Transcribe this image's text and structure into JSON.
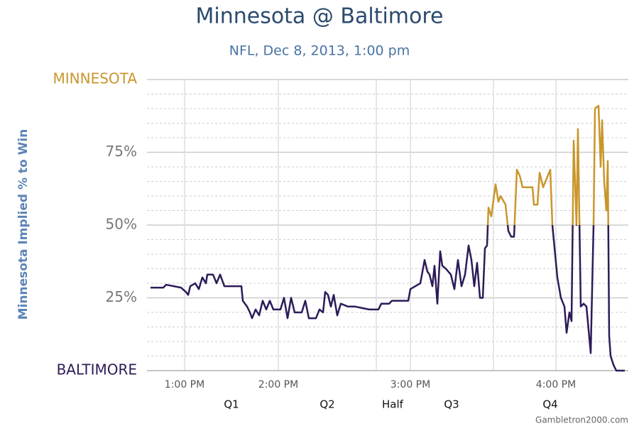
{
  "chart_data": {
    "type": "line",
    "title": "Minnesota @ Baltimore",
    "subtitle": "NFL, Dec 8, 2013, 1:00 pm",
    "y_label": "Minnesota Implied % to Win",
    "source": "Gambletron2000.com",
    "xlim": [
      0,
      678
    ],
    "ylim": [
      0,
      100
    ],
    "xticks": [
      {
        "value": 53,
        "label": "1:00 PM"
      },
      {
        "value": 185,
        "label": "2:00 PM"
      },
      {
        "value": 371,
        "label": "3:00 PM"
      },
      {
        "value": 576,
        "label": "4:00 PM"
      }
    ],
    "yticks": [
      {
        "value": 0,
        "label": "BALTIMORE"
      },
      {
        "value": 25,
        "label": "25%"
      },
      {
        "value": 50,
        "label": "50%"
      },
      {
        "value": 75,
        "label": "75%"
      },
      {
        "value": 100,
        "label": "MINNESOTA"
      }
    ],
    "minor_ystep": 5,
    "periods": [
      {
        "label": "Q1",
        "x": 119
      },
      {
        "label": "Q2",
        "x": 254
      },
      {
        "label": "Half",
        "x": 346
      },
      {
        "label": "Q3",
        "x": 429
      },
      {
        "label": "Q4",
        "x": 568
      }
    ],
    "period_boundaries": [
      323,
      488
    ],
    "grid": true,
    "series": [
      {
        "color": "#2d1b58",
        "above_color": "#c9962c",
        "color_split": 50,
        "x": [
          5,
          23,
          27,
          38,
          48,
          55,
          58,
          61,
          68,
          73,
          78,
          83,
          85,
          93,
          98,
          103,
          109,
          133,
          135,
          141,
          145,
          148,
          153,
          158,
          163,
          168,
          173,
          178,
          188,
          193,
          198,
          203,
          208,
          218,
          223,
          228,
          238,
          243,
          248,
          251,
          255,
          259,
          263,
          268,
          273,
          283,
          293,
          313,
          326,
          330,
          341,
          345,
          358,
          368,
          371,
          378,
          385,
          391,
          395,
          398,
          402,
          405,
          409,
          413,
          416,
          421,
          428,
          433,
          438,
          443,
          448,
          453,
          457,
          461,
          465,
          469,
          473,
          476,
          479,
          481,
          485,
          491,
          495,
          498,
          505,
          509,
          513,
          517,
          521,
          525,
          529,
          543,
          545,
          550,
          553,
          558,
          563,
          568,
          571,
          578,
          583,
          588,
          591,
          595,
          598,
          601,
          605,
          607,
          611,
          615,
          619,
          622,
          625,
          629,
          631,
          636,
          639,
          641,
          644,
          647,
          649,
          651,
          653,
          657,
          661,
          673
        ],
        "values": [
          28.5,
          28.5,
          29.5,
          29,
          28.5,
          27,
          26,
          29,
          30,
          28,
          32,
          30,
          33,
          33,
          30,
          33,
          29,
          29,
          24,
          22,
          20,
          18,
          21,
          19,
          24,
          21,
          24,
          21,
          21,
          25,
          18,
          25,
          20,
          20,
          24,
          18,
          18,
          21,
          20,
          27,
          26,
          22,
          26,
          19,
          23,
          22,
          22,
          21,
          21,
          23,
          23,
          24,
          24,
          24,
          28,
          29,
          30,
          38,
          34,
          33,
          29,
          36,
          23,
          41,
          36,
          35,
          33,
          28,
          38,
          29,
          33,
          43,
          38,
          29,
          37,
          25,
          25,
          42,
          43,
          56,
          53,
          64,
          58,
          60,
          57,
          48,
          46,
          46,
          69,
          67,
          63,
          63,
          57,
          57,
          68,
          63,
          66,
          69,
          50,
          32,
          25,
          22,
          13,
          20,
          17,
          79,
          50,
          83,
          22,
          23,
          22,
          14,
          6,
          50,
          90,
          91,
          70,
          86,
          65,
          55,
          72,
          12,
          5,
          2,
          0,
          0
        ]
      }
    ]
  }
}
